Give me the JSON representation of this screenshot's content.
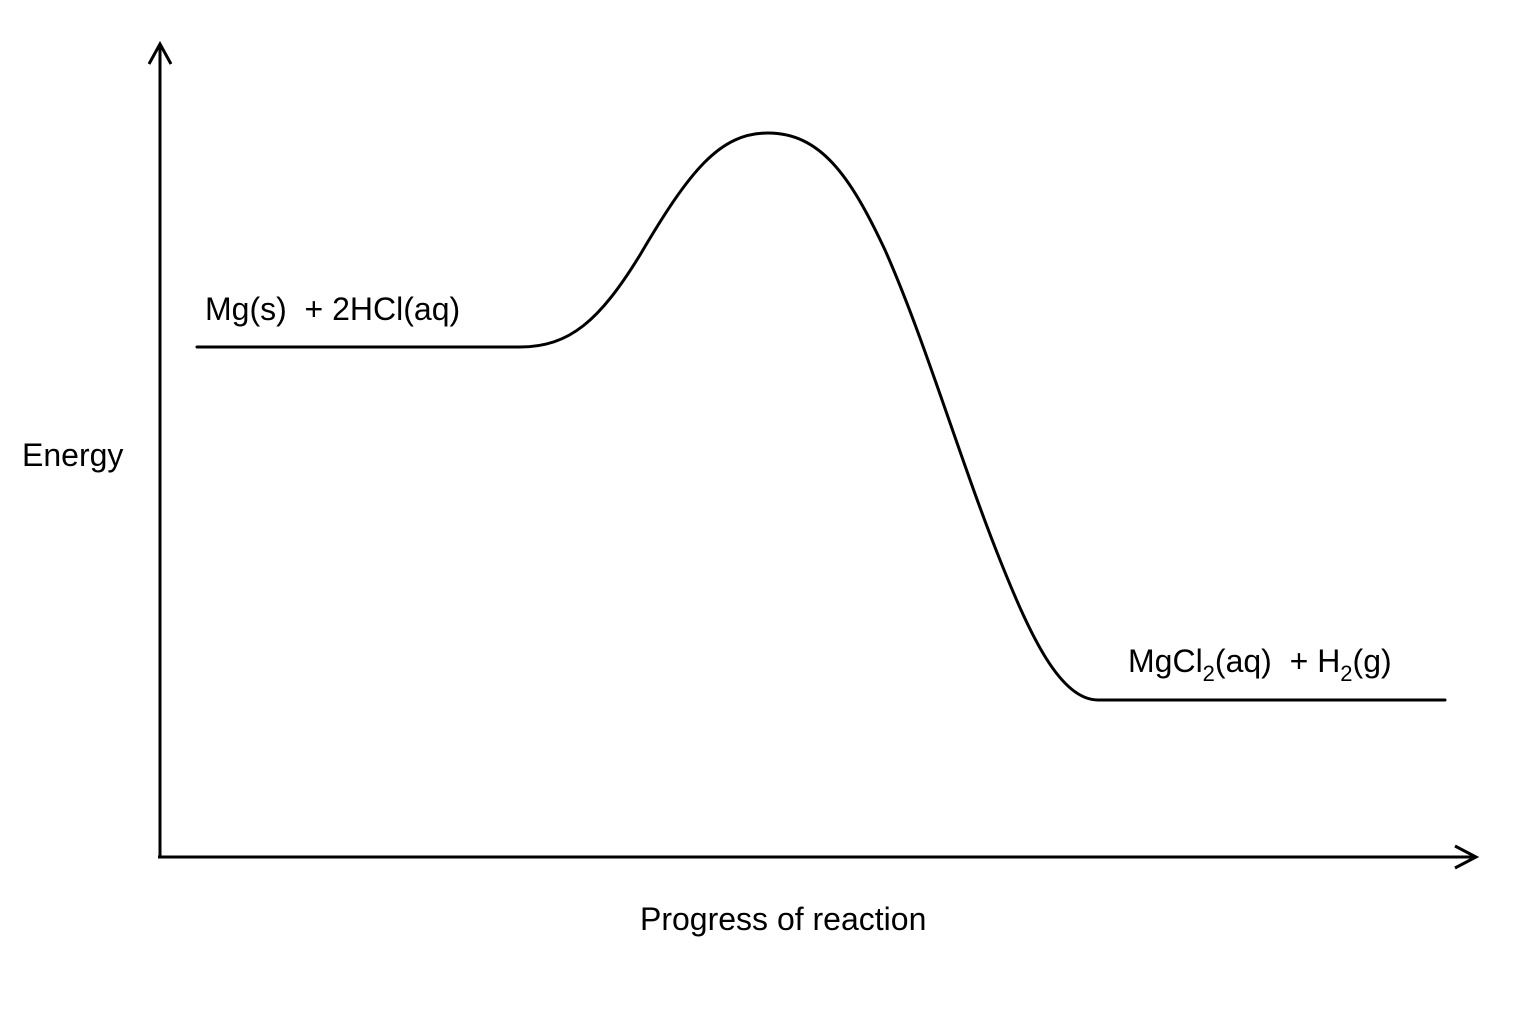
{
  "diagram": {
    "type": "energy-profile",
    "y_axis_label": "Energy",
    "x_axis_label": "Progress of reaction",
    "reactants": {
      "prefix": "Mg(s)  + 2HCl(aq)"
    },
    "products": {
      "part1": "MgCl",
      "sub1": "2",
      "part2": "(aq)  + H",
      "sub2": "2",
      "part3": "(g)"
    },
    "colors": {
      "line": "#000000",
      "background": "#ffffff"
    }
  }
}
